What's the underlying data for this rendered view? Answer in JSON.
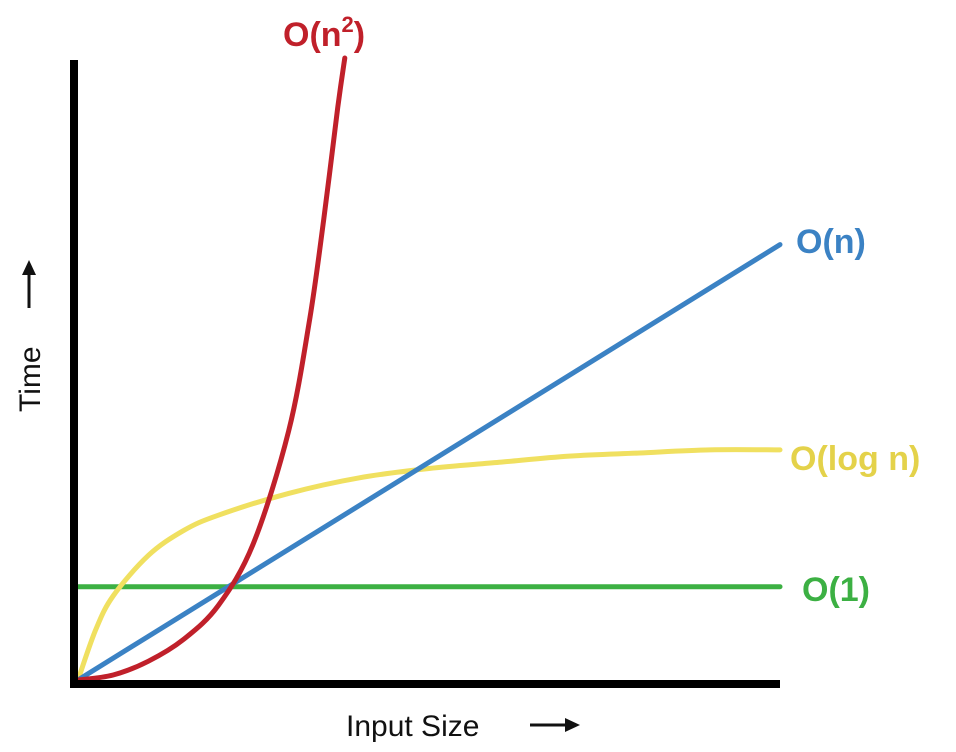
{
  "chart_data": {
    "type": "line",
    "xlabel": "Input Size",
    "ylabel": "Time",
    "xlim": [
      0,
      10
    ],
    "ylim": [
      0,
      10
    ],
    "grid": false,
    "series": [
      {
        "name": "O(1)",
        "color": "#3cb043",
        "x": [
          0,
          1,
          2,
          3,
          4,
          5,
          6,
          7,
          8,
          9,
          10
        ],
        "values": [
          1.5,
          1.5,
          1.5,
          1.5,
          1.5,
          1.5,
          1.5,
          1.5,
          1.5,
          1.5,
          1.5
        ]
      },
      {
        "name": "O(log n)",
        "color": "#f0e060",
        "x": [
          0,
          0.25,
          0.5,
          1,
          1.5,
          2,
          3,
          4,
          5,
          6,
          7,
          8,
          9,
          10
        ],
        "values": [
          0,
          0.8,
          1.35,
          2.0,
          2.4,
          2.65,
          3.0,
          3.25,
          3.4,
          3.5,
          3.6,
          3.65,
          3.7,
          3.7
        ]
      },
      {
        "name": "O(n)",
        "color": "#3b82c4",
        "x": [
          0,
          10
        ],
        "values": [
          0,
          7.0
        ]
      },
      {
        "name": "O(n²)",
        "color": "#c0202a",
        "x": [
          0,
          0.5,
          1,
          1.5,
          2,
          2.5,
          3,
          3.3,
          3.5,
          3.7,
          3.8
        ],
        "values": [
          0,
          0.08,
          0.3,
          0.65,
          1.2,
          2.2,
          4.0,
          5.8,
          7.4,
          9.2,
          10
        ]
      }
    ],
    "labels": {
      "o1": "O(1)",
      "ologn": "O(log n)",
      "on": "O(n)",
      "on2_base": "O(n",
      "on2_sup": "2",
      "on2_close": ")"
    }
  }
}
